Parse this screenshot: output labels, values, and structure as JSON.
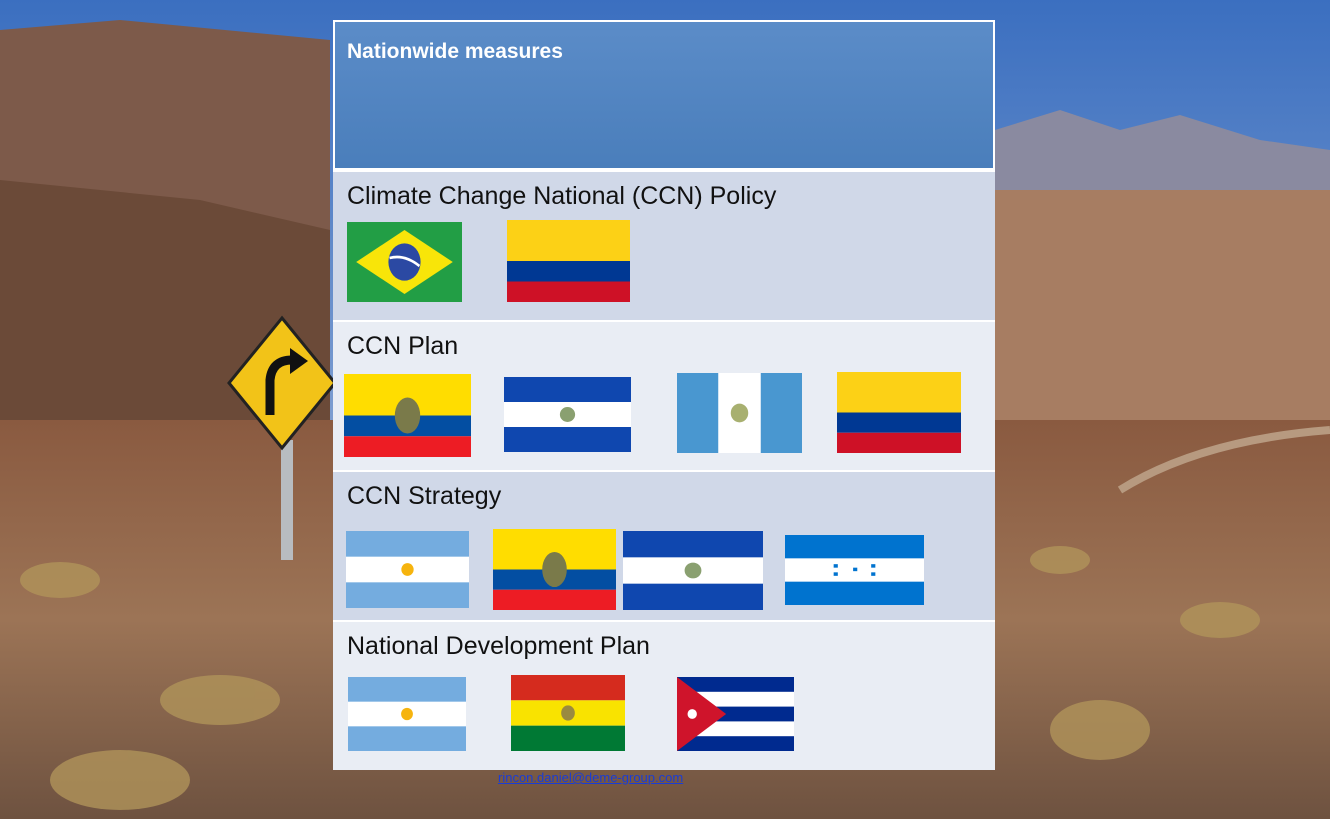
{
  "title": "Nationwide measures",
  "rows": [
    {
      "label": "Climate Change National (CCN) Policy"
    },
    {
      "label": "CCN Plan"
    },
    {
      "label": "CCN Strategy"
    },
    {
      "label": "National Development Plan"
    }
  ],
  "footer": {
    "email": "rincon.daniel@deme-group.com"
  }
}
